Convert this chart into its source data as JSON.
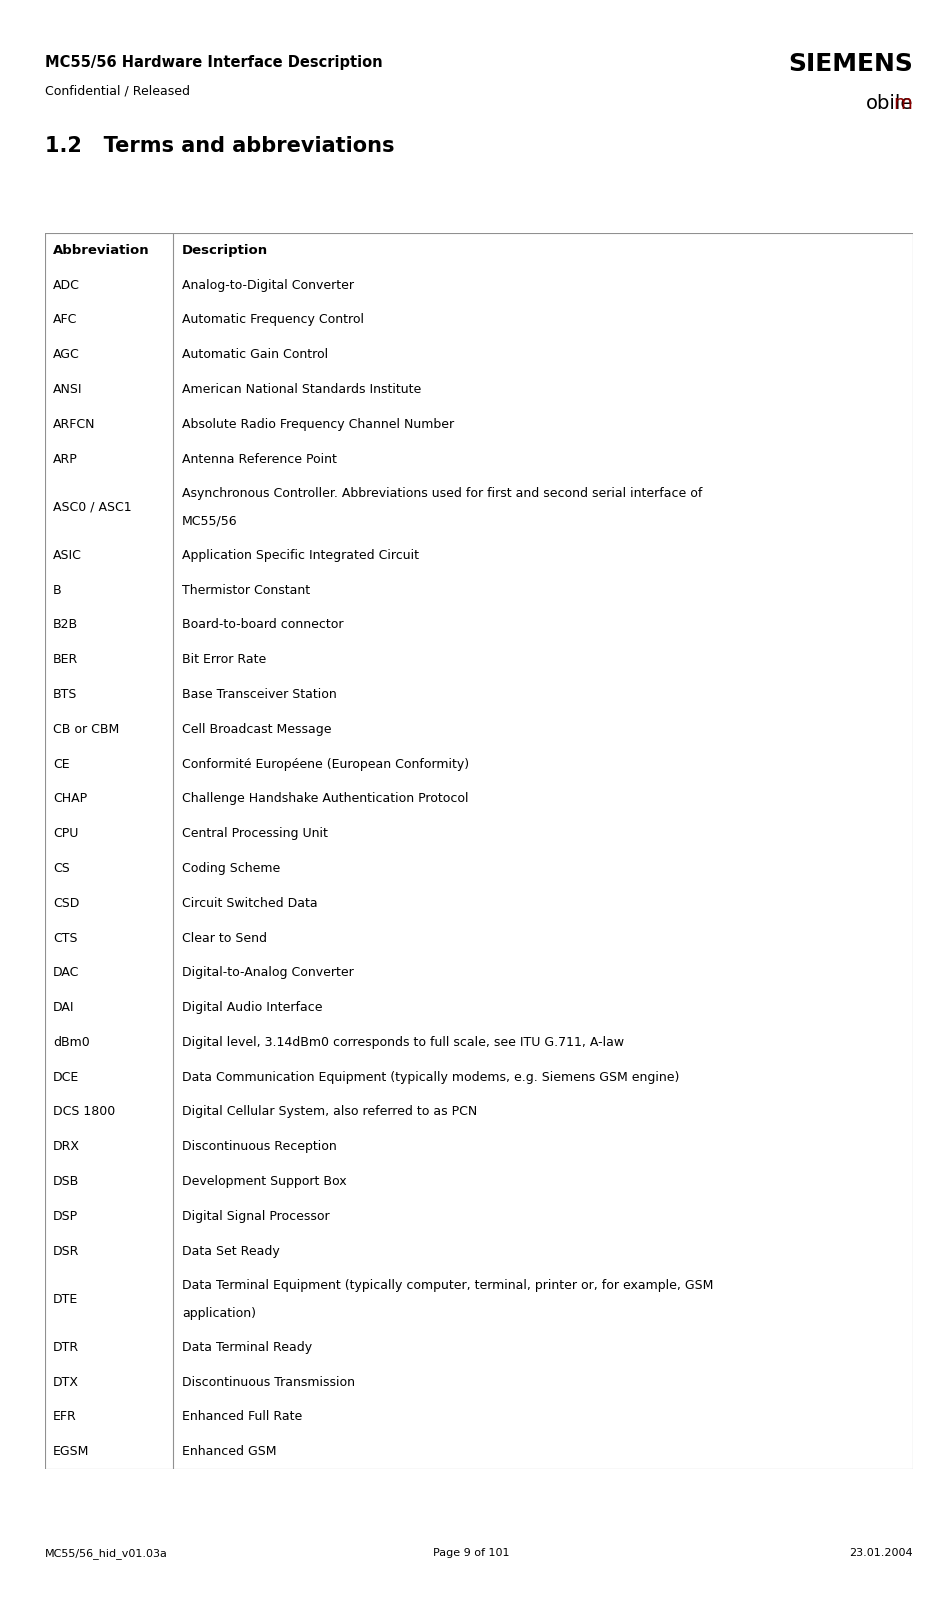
{
  "header_title": "MC55/56 Hardware Interface Description",
  "header_subtitle": "Confidential / Released",
  "footer_left": "MC55/56_hid_v01.03a",
  "footer_center": "Page 9 of 101",
  "footer_right": "23.01.2004",
  "section_title": "1.2   Terms and abbreviations",
  "col1_header": "Abbreviation",
  "col2_header": "Description",
  "header_bg": "#c0c0c0",
  "row_bg_even": "#e0e0e0",
  "row_bg_odd": "#ffffff",
  "rows": [
    [
      "ADC",
      "Analog-to-Digital Converter",
      1
    ],
    [
      "AFC",
      "Automatic Frequency Control",
      1
    ],
    [
      "AGC",
      "Automatic Gain Control",
      1
    ],
    [
      "ANSI",
      "American National Standards Institute",
      1
    ],
    [
      "ARFCN",
      "Absolute Radio Frequency Channel Number",
      1
    ],
    [
      "ARP",
      "Antenna Reference Point",
      1
    ],
    [
      "ASC0 / ASC1",
      "Asynchronous Controller. Abbreviations used for first and second serial interface of\nMC55/56",
      2
    ],
    [
      "ASIC",
      "Application Specific Integrated Circuit",
      1
    ],
    [
      "B",
      "Thermistor Constant",
      1
    ],
    [
      "B2B",
      "Board-to-board connector",
      1
    ],
    [
      "BER",
      "Bit Error Rate",
      1
    ],
    [
      "BTS",
      "Base Transceiver Station",
      1
    ],
    [
      "CB or CBM",
      "Cell Broadcast Message",
      1
    ],
    [
      "CE",
      "Conformité Européene (European Conformity)",
      1
    ],
    [
      "CHAP",
      "Challenge Handshake Authentication Protocol",
      1
    ],
    [
      "CPU",
      "Central Processing Unit",
      1
    ],
    [
      "CS",
      "Coding Scheme",
      1
    ],
    [
      "CSD",
      "Circuit Switched Data",
      1
    ],
    [
      "CTS",
      "Clear to Send",
      1
    ],
    [
      "DAC",
      "Digital-to-Analog Converter",
      1
    ],
    [
      "DAI",
      "Digital Audio Interface",
      1
    ],
    [
      "dBm0",
      "Digital level, 3.14dBm0 corresponds to full scale, see ITU G.711, A-law",
      1
    ],
    [
      "DCE",
      "Data Communication Equipment (typically modems, e.g. Siemens GSM engine)",
      1
    ],
    [
      "DCS 1800",
      "Digital Cellular System, also referred to as PCN",
      1
    ],
    [
      "DRX",
      "Discontinuous Reception",
      1
    ],
    [
      "DSB",
      "Development Support Box",
      1
    ],
    [
      "DSP",
      "Digital Signal Processor",
      1
    ],
    [
      "DSR",
      "Data Set Ready",
      1
    ],
    [
      "DTE",
      "Data Terminal Equipment (typically computer, terminal, printer or, for example, GSM\napplication)",
      2
    ],
    [
      "DTR",
      "Data Terminal Ready",
      1
    ],
    [
      "DTX",
      "Discontinuous Transmission",
      1
    ],
    [
      "EFR",
      "Enhanced Full Rate",
      1
    ],
    [
      "EGSM",
      "Enhanced GSM",
      1
    ]
  ]
}
